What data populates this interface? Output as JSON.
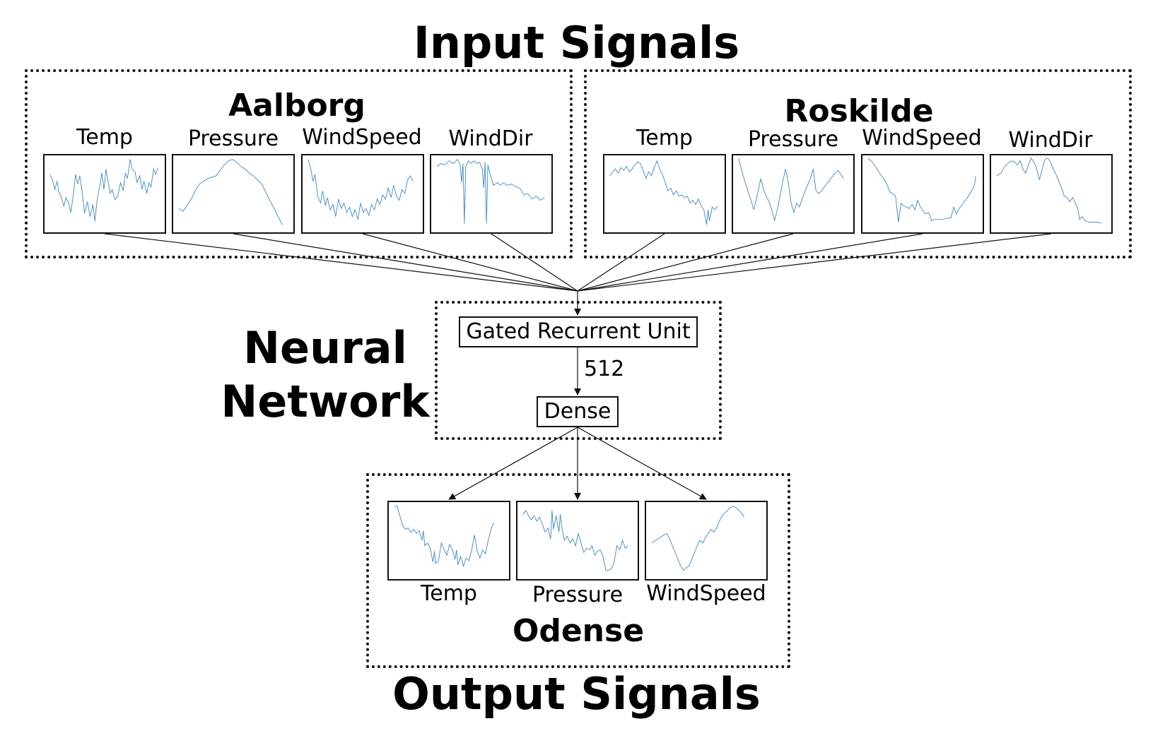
{
  "titles": {
    "input": "Input Signals",
    "network_line1": "Neural",
    "network_line2": "Network",
    "output": "Output Signals"
  },
  "inputs": {
    "aalborg": {
      "name": "Aalborg",
      "signals": [
        "Temp",
        "Pressure",
        "WindSpeed",
        "WindDir"
      ]
    },
    "roskilde": {
      "name": "Roskilde",
      "signals": [
        "Temp",
        "Pressure",
        "WindSpeed",
        "WindDir"
      ]
    }
  },
  "network": {
    "gru_label": "Gated Recurrent Unit",
    "edge_label": "512",
    "dense_label": "Dense"
  },
  "output": {
    "name": "Odense",
    "signals": [
      "Temp",
      "Pressure",
      "WindSpeed"
    ]
  },
  "colors": {
    "signal_line": "#4a90c8",
    "frame": "#111111"
  }
}
